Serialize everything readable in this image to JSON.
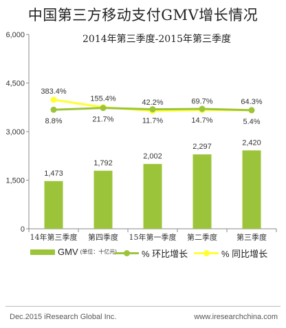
{
  "title": "中国第三方移动支付GMV增长情况",
  "subtitle": "2014年第三季度-2015年第三季度",
  "footer": {
    "left": "Dec.2015 iResearch Global Inc.",
    "right": "www.iresearchchina.com"
  },
  "legend": {
    "gmv_label": "GMV",
    "gmv_unit": "(单位：十亿元)",
    "qoq_label": "%  环比增长",
    "yoy_label": "%  同比增长"
  },
  "colors": {
    "bar": "#9cc43a",
    "qoq_line": "#9cc43a",
    "yoy_line": "#ffff33",
    "axis": "#888888"
  },
  "chart_data": {
    "type": "bar",
    "categories": [
      "14年第三季度",
      "第四季度",
      "15年第一季度",
      "第二季度",
      "第三季度"
    ],
    "ylim": [
      0,
      6000
    ],
    "yticks": [
      "0",
      "1,500",
      "3,000",
      "4,500",
      "6,000"
    ],
    "series": [
      {
        "name": "GMV (单位：十亿元)",
        "type": "bar",
        "values": [
          1473,
          1792,
          2002,
          2297,
          2420
        ],
        "labels": [
          "1,473",
          "1,792",
          "2,002",
          "2,297",
          "2,420"
        ]
      },
      {
        "name": "% 环比增长",
        "type": "line",
        "values": [
          8.8,
          21.7,
          11.7,
          14.7,
          5.4
        ],
        "labels": [
          "8.8%",
          "21.7%",
          "11.7%",
          "14.7%",
          "5.4%"
        ]
      },
      {
        "name": "% 同比增长",
        "type": "line",
        "values": [
          383.4,
          155.4,
          42.2,
          69.7,
          64.3
        ],
        "labels": [
          "383.4%",
          "155.4%",
          "42.2%",
          "69.7%",
          "64.3%"
        ]
      }
    ]
  }
}
